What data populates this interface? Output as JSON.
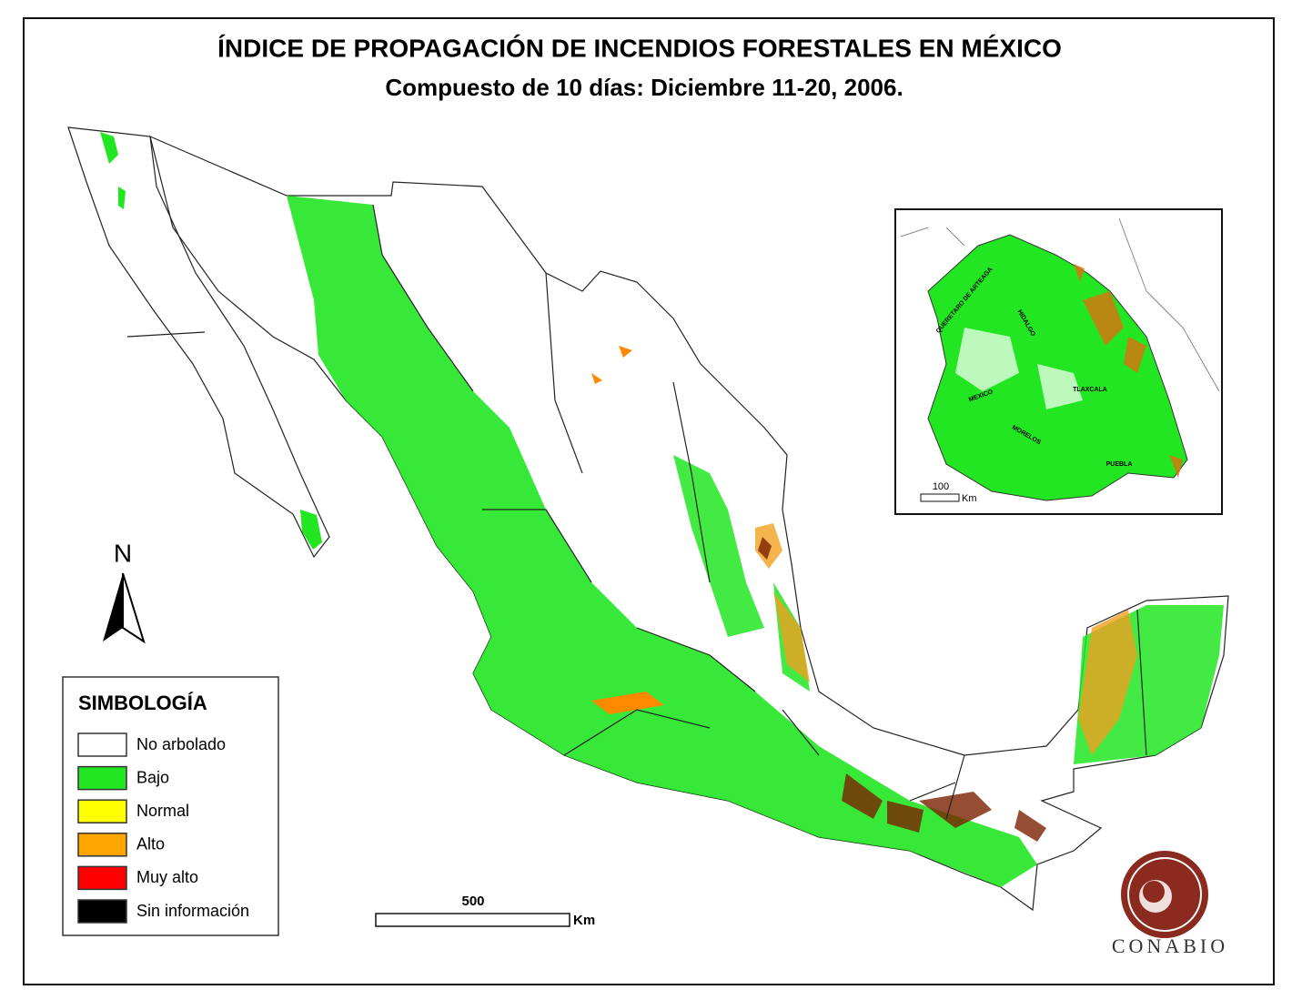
{
  "header": {
    "title": "ÍNDICE DE PROPAGACIÓN DE INCENDIOS FORESTALES EN MÉXICO",
    "subtitle": "Compuesto de 10 días: Diciembre 11-20, 2006."
  },
  "legend": {
    "title": "SIMBOLOGÍA",
    "items": [
      {
        "label": "No arbolado",
        "color": "#ffffff"
      },
      {
        "label": "Bajo",
        "color": "#22e622"
      },
      {
        "label": "Normal",
        "color": "#ffff00"
      },
      {
        "label": "Alto",
        "color": "#ffa500"
      },
      {
        "label": "Muy alto",
        "color": "#ff0000"
      },
      {
        "label": "Sin información",
        "color": "#000000"
      }
    ]
  },
  "north": "N",
  "scale": {
    "distance": "500",
    "unit": "Km"
  },
  "inset": {
    "states": [
      "QUERETARO DE ARTEAGA",
      "HIDALGO",
      "MEXICO",
      "TLAXCALA",
      "MORELOS",
      "PUEBLA"
    ],
    "scale": {
      "distance": "100",
      "unit": "Km"
    }
  },
  "logo": "CONABIO"
}
